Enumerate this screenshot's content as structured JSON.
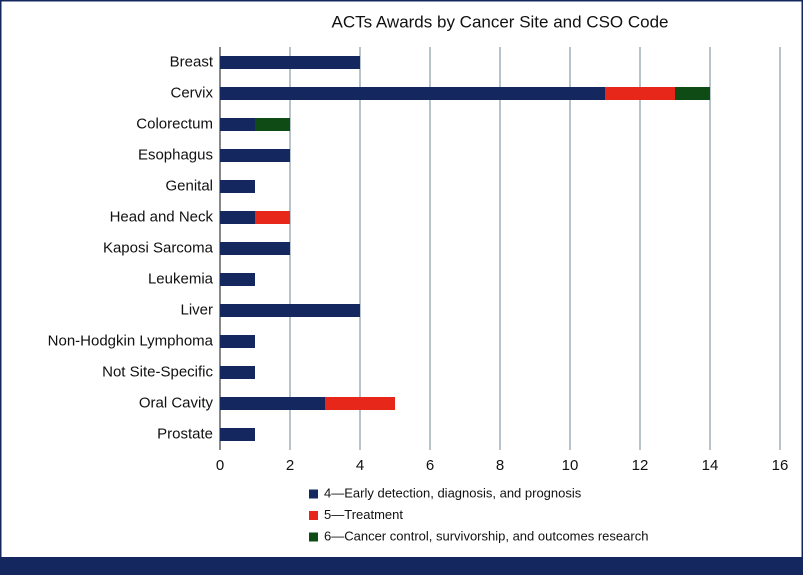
{
  "chart_data": {
    "type": "stacked-bar-horizontal",
    "title": "ACTs Awards by Cancer Site and CSO Code",
    "categories": [
      "Breast",
      "Cervix",
      "Colorectum",
      "Esophagus",
      "Genital",
      "Head and Neck",
      "Kaposi Sarcoma",
      "Leukemia",
      "Liver",
      "Non-Hodgkin Lymphoma",
      "Not Site-Specific",
      "Oral Cavity",
      "Prostate"
    ],
    "series": [
      {
        "name": "4—Early detection, diagnosis, and prognosis",
        "color": "#14275f",
        "values": [
          4,
          11,
          1,
          2,
          1,
          1,
          2,
          1,
          4,
          1,
          1,
          3,
          1
        ]
      },
      {
        "name": "5—Treatment",
        "color": "#e8271b",
        "values": [
          0,
          2,
          0,
          0,
          0,
          1,
          0,
          0,
          0,
          0,
          0,
          2,
          0
        ]
      },
      {
        "name": "6—Cancer control, survivorship, and outcomes research",
        "color": "#0f4b14",
        "values": [
          0,
          1,
          1,
          0,
          0,
          0,
          0,
          0,
          0,
          0,
          0,
          0,
          0
        ]
      }
    ],
    "xlim": [
      0,
      16
    ],
    "xticks": [
      0,
      2,
      4,
      6,
      8,
      10,
      12,
      14,
      16
    ],
    "grid": true
  }
}
